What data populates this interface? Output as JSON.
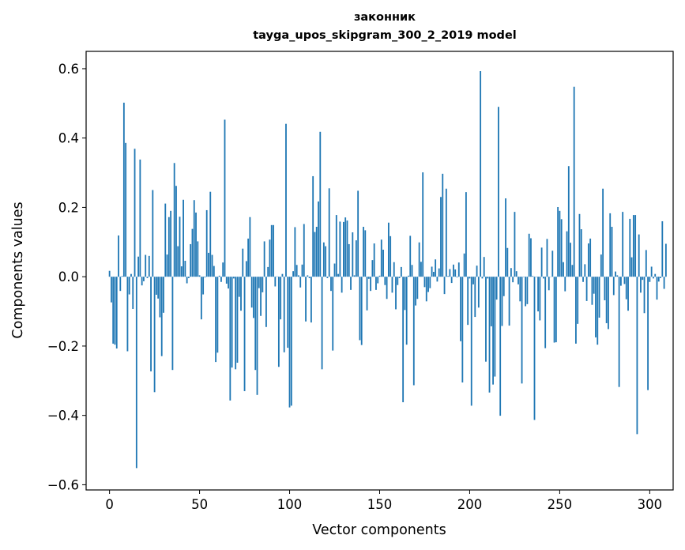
{
  "chart_data": {
    "type": "bar",
    "title": "законник",
    "subtitle": "tayga_upos_skipgram_300_2_2019 model",
    "xlabel": "Vector components",
    "ylabel": "Components values",
    "xlim": [
      -13,
      313
    ],
    "ylim": [
      -0.615,
      0.65
    ],
    "xticks": [
      0,
      50,
      100,
      150,
      200,
      250,
      300
    ],
    "yticks": [
      -0.6,
      -0.4,
      -0.2,
      0.0,
      0.2,
      0.4,
      0.6
    ],
    "ytick_labels": [
      "−0.6",
      "−0.4",
      "−0.2",
      "0.0",
      "0.2",
      "0.4",
      "0.6"
    ],
    "bar_color": "#1f77b4",
    "grid": false,
    "values": [
      0.017,
      -0.074,
      -0.193,
      -0.196,
      -0.207,
      0.119,
      -0.041,
      0.002,
      0.502,
      0.386,
      -0.215,
      -0.051,
      0.008,
      -0.093,
      0.369,
      -0.552,
      0.058,
      0.338,
      -0.025,
      -0.013,
      0.063,
      -0.004,
      0.06,
      -0.273,
      0.25,
      -0.333,
      -0.052,
      -0.063,
      -0.117,
      -0.229,
      -0.104,
      0.211,
      0.064,
      0.172,
      0.19,
      -0.269,
      0.328,
      0.262,
      0.088,
      0.173,
      0.03,
      0.222,
      0.046,
      -0.019,
      -0.004,
      0.094,
      0.138,
      0.221,
      0.185,
      0.102,
      0.004,
      -0.123,
      -0.051,
      -0.002,
      0.192,
      0.069,
      0.245,
      0.063,
      0.031,
      -0.246,
      -0.219,
      0.003,
      -0.015,
      0.041,
      0.453,
      -0.02,
      -0.034,
      -0.357,
      -0.262,
      -0.005,
      -0.267,
      -0.248,
      -0.058,
      -0.098,
      0.081,
      -0.33,
      0.045,
      0.11,
      0.172,
      -0.089,
      -0.119,
      -0.269,
      -0.341,
      -0.033,
      -0.113,
      -0.045,
      0.102,
      -0.145,
      0.028,
      0.107,
      0.149,
      0.149,
      -0.028,
      0.001,
      -0.26,
      -0.123,
      0.008,
      -0.218,
      0.441,
      -0.205,
      -0.377,
      -0.372,
      0.016,
      0.143,
      0.034,
      0.004,
      -0.031,
      0.035,
      0.152,
      -0.129,
      0.004,
      -0.004,
      -0.132,
      0.29,
      0.129,
      0.144,
      0.217,
      0.418,
      -0.267,
      0.099,
      0.088,
      -0.004,
      0.255,
      -0.041,
      -0.213,
      0.038,
      0.178,
      0.008,
      0.159,
      -0.046,
      0.158,
      0.171,
      0.162,
      0.094,
      -0.038,
      0.128,
      0.004,
      0.105,
      0.248,
      -0.183,
      -0.197,
      0.144,
      0.134,
      -0.097,
      -0.006,
      -0.041,
      0.048,
      0.096,
      -0.038,
      -0.019,
      0.003,
      0.107,
      0.078,
      -0.024,
      -0.064,
      0.156,
      0.117,
      -0.046,
      0.042,
      -0.094,
      -0.024,
      -0.004,
      0.028,
      -0.362,
      -0.096,
      -0.196,
      0.003,
      0.118,
      0.034,
      -0.313,
      -0.083,
      -0.064,
      0.099,
      0.043,
      0.301,
      -0.03,
      -0.071,
      -0.044,
      -0.033,
      0.029,
      0.014,
      0.05,
      -0.014,
      0.024,
      0.23,
      0.297,
      -0.05,
      0.254,
      0.002,
      0.022,
      -0.018,
      0.035,
      0.021,
      -0.002,
      0.041,
      -0.186,
      -0.305,
      0.067,
      0.244,
      -0.139,
      -0.005,
      -0.372,
      -0.022,
      -0.116,
      0.032,
      -0.089,
      0.593,
      -0.005,
      0.057,
      -0.245,
      -0.005,
      -0.334,
      -0.143,
      -0.311,
      -0.288,
      -0.066,
      0.49,
      -0.401,
      -0.142,
      -0.056,
      0.226,
      0.083,
      -0.141,
      0.025,
      -0.016,
      0.187,
      0.016,
      -0.022,
      -0.071,
      -0.308,
      -0.001,
      -0.085,
      -0.079,
      0.124,
      0.111,
      0.002,
      -0.413,
      -0.001,
      -0.1,
      -0.126,
      0.084,
      -0.005,
      -0.206,
      0.109,
      -0.039,
      0.0,
      0.075,
      -0.19,
      -0.189,
      0.201,
      0.19,
      0.166,
      0.042,
      -0.042,
      0.131,
      0.319,
      0.098,
      0.034,
      0.548,
      -0.193,
      -0.136,
      0.181,
      0.137,
      -0.015,
      0.036,
      -0.07,
      0.096,
      0.11,
      -0.081,
      -0.049,
      -0.175,
      -0.196,
      -0.118,
      0.064,
      0.254,
      -0.068,
      -0.134,
      -0.151,
      0.183,
      0.144,
      -0.053,
      0.015,
      0.004,
      -0.318,
      -0.026,
      0.187,
      -0.021,
      -0.065,
      -0.098,
      0.167,
      0.056,
      0.178,
      0.178,
      -0.454,
      0.122,
      -0.046,
      -0.009,
      -0.105,
      0.077,
      -0.327,
      -0.015,
      0.029,
      -0.005,
      0.008,
      -0.066,
      -0.014,
      -0.004,
      0.16,
      -0.035,
      0.095
    ]
  }
}
